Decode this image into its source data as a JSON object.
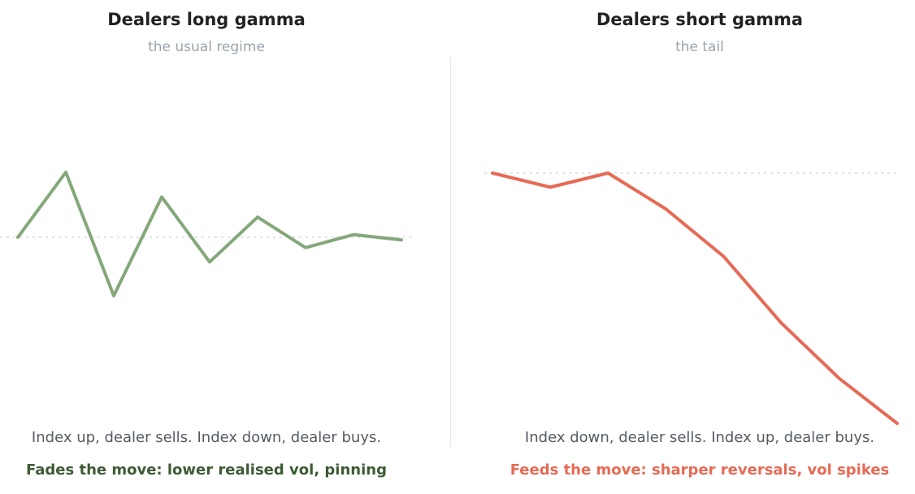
{
  "chart_data": [
    {
      "type": "line",
      "title": "Dealers long gamma",
      "subtitle": "the usual regime",
      "description": "Index up, dealer sells. Index down, dealer buys.",
      "takeaway": "Fades the move: lower realised vol, pinning",
      "x": [
        0,
        1,
        2,
        3,
        4,
        5,
        6,
        7,
        8
      ],
      "series": [
        {
          "values": [
            0,
            1.0,
            -0.9,
            0.62,
            -0.38,
            0.31,
            -0.16,
            0.04,
            -0.04
          ],
          "color": "#84a87a"
        }
      ],
      "reference_line": 0,
      "ylim": [
        -2.6,
        2.6
      ],
      "takeaway_color": "#3d5a34",
      "grid": false
    },
    {
      "type": "line",
      "title": "Dealers short gamma",
      "subtitle": "the tail",
      "description": "Index down, dealer sells. Index up, dealer buys.",
      "takeaway": "Feeds the move: sharper reversals, vol spikes",
      "x": [
        0,
        1,
        2,
        3,
        4,
        5,
        6,
        7
      ],
      "series": [
        {
          "values": [
            0,
            -0.22,
            0,
            -0.56,
            -1.3,
            -2.34,
            -3.2,
            -3.9
          ],
          "color": "#e66a55"
        }
      ],
      "reference_line": 0,
      "ylim": [
        -3.9,
        2.6
      ],
      "takeaway_color": "#e66a55",
      "grid": false
    }
  ]
}
